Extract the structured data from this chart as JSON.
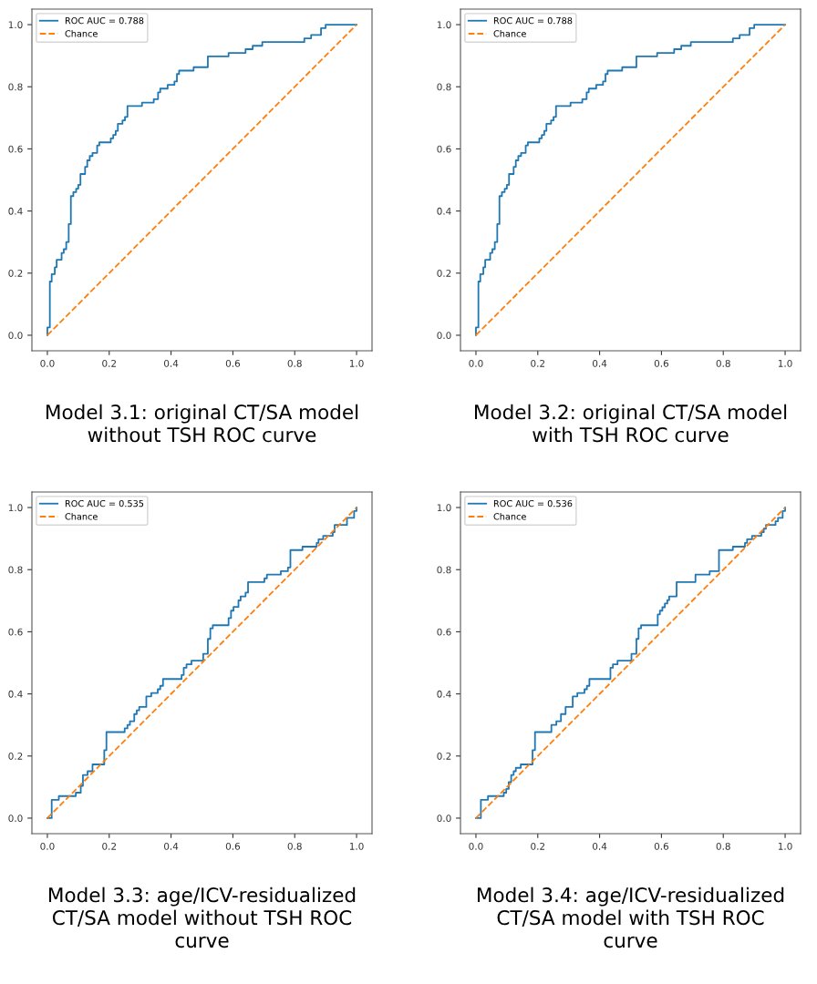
{
  "chart_data": [
    {
      "type": "step",
      "xlabel": "Model 3.1: original CT/SA model\nwithout TSH ROC curve",
      "xlim": [
        -0.05,
        1.05
      ],
      "ylim": [
        -0.05,
        1.05
      ],
      "xticks": [
        {
          "value": 0,
          "label": "0.0"
        },
        {
          "value": 0.2,
          "label": "0.2"
        },
        {
          "value": 0.4,
          "label": "0.4"
        },
        {
          "value": 0.6,
          "label": "0.6"
        },
        {
          "value": 0.8,
          "label": "0.8"
        },
        {
          "value": 1,
          "label": "1.0"
        }
      ],
      "yticks": [
        {
          "value": 0,
          "label": "0.0"
        },
        {
          "value": 0.2,
          "label": "0.2"
        },
        {
          "value": 0.4,
          "label": "0.4"
        },
        {
          "value": 0.6,
          "label": "0.6"
        },
        {
          "value": 0.8,
          "label": "0.8"
        },
        {
          "value": 1,
          "label": "1.0"
        }
      ],
      "grid": false,
      "legend": "top left",
      "series": [
        {
          "name": "ROC AUC = 0.788",
          "color": "#1f77b4",
          "line_style": "solid",
          "x": [
            0,
            0,
            0.008,
            0.014,
            0.024,
            0.03,
            0.046,
            0.053,
            0.061,
            0.069,
            0.076,
            0.084,
            0.093,
            0.1,
            0.107,
            0.122,
            0.129,
            0.137,
            0.146,
            0.161,
            0.168,
            0.205,
            0.213,
            0.221,
            0.228,
            0.243,
            0.251,
            0.259,
            0.306,
            0.344,
            0.358,
            0.365,
            0.389,
            0.411,
            0.419,
            0.426,
            0.473,
            0.519,
            0.586,
            0.641,
            0.664,
            0.695,
            0.831,
            0.853,
            0.885,
            0.9,
            1.0
          ],
          "values": [
            0,
            0.025,
            0.173,
            0.197,
            0.219,
            0.243,
            0.265,
            0.277,
            0.3,
            0.358,
            0.448,
            0.461,
            0.472,
            0.484,
            0.519,
            0.542,
            0.563,
            0.577,
            0.587,
            0.611,
            0.621,
            0.634,
            0.645,
            0.658,
            0.681,
            0.692,
            0.703,
            0.738,
            0.749,
            0.76,
            0.782,
            0.794,
            0.806,
            0.817,
            0.841,
            0.852,
            0.863,
            0.898,
            0.909,
            0.921,
            0.932,
            0.944,
            0.956,
            0.967,
            0.989,
            1.0,
            1.0
          ]
        },
        {
          "name": "Chance",
          "type": "line",
          "color": "#ff7f0e",
          "line_style": "dashed",
          "x": [
            0,
            1
          ],
          "values": [
            0,
            1
          ]
        }
      ]
    },
    {
      "type": "step",
      "xlabel": "Model 3.2: original CT/SA model\nwith TSH ROC curve",
      "xlim": [
        -0.05,
        1.05
      ],
      "ylim": [
        -0.05,
        1.05
      ],
      "xticks": [
        {
          "value": 0,
          "label": "0.0"
        },
        {
          "value": 0.2,
          "label": "0.2"
        },
        {
          "value": 0.4,
          "label": "0.4"
        },
        {
          "value": 0.6,
          "label": "0.6"
        },
        {
          "value": 0.8,
          "label": "0.8"
        },
        {
          "value": 1,
          "label": "1.0"
        }
      ],
      "yticks": [
        {
          "value": 0,
          "label": "0.0"
        },
        {
          "value": 0.2,
          "label": "0.2"
        },
        {
          "value": 0.4,
          "label": "0.4"
        },
        {
          "value": 0.6,
          "label": "0.6"
        },
        {
          "value": 0.8,
          "label": "0.8"
        },
        {
          "value": 1,
          "label": "1.0"
        }
      ],
      "grid": false,
      "legend": "top left",
      "series": [
        {
          "name": "ROC AUC = 0.788",
          "color": "#1f77b4",
          "line_style": "solid",
          "x": [
            0,
            0,
            0.008,
            0.014,
            0.024,
            0.03,
            0.046,
            0.053,
            0.061,
            0.069,
            0.076,
            0.084,
            0.093,
            0.1,
            0.107,
            0.122,
            0.129,
            0.137,
            0.146,
            0.161,
            0.168,
            0.205,
            0.213,
            0.221,
            0.228,
            0.243,
            0.251,
            0.259,
            0.306,
            0.344,
            0.358,
            0.365,
            0.389,
            0.411,
            0.419,
            0.426,
            0.473,
            0.519,
            0.586,
            0.641,
            0.664,
            0.695,
            0.831,
            0.853,
            0.885,
            0.9,
            1.0
          ],
          "values": [
            0,
            0.025,
            0.173,
            0.197,
            0.219,
            0.243,
            0.265,
            0.277,
            0.3,
            0.358,
            0.448,
            0.461,
            0.472,
            0.484,
            0.519,
            0.542,
            0.563,
            0.577,
            0.587,
            0.611,
            0.621,
            0.634,
            0.645,
            0.658,
            0.681,
            0.692,
            0.703,
            0.738,
            0.749,
            0.76,
            0.782,
            0.794,
            0.806,
            0.817,
            0.841,
            0.852,
            0.863,
            0.898,
            0.909,
            0.921,
            0.932,
            0.944,
            0.956,
            0.967,
            0.989,
            1.0,
            1.0
          ]
        },
        {
          "name": "Chance",
          "type": "line",
          "color": "#ff7f0e",
          "line_style": "dashed",
          "x": [
            0,
            1
          ],
          "values": [
            0,
            1
          ]
        }
      ]
    },
    {
      "type": "step",
      "xlabel": "Model 3.3: age/ICV-residualized\nCT/SA model without TSH ROC\ncurve",
      "xlim": [
        -0.05,
        1.05
      ],
      "ylim": [
        -0.05,
        1.05
      ],
      "xticks": [
        {
          "value": 0,
          "label": "0.0"
        },
        {
          "value": 0.2,
          "label": "0.2"
        },
        {
          "value": 0.4,
          "label": "0.4"
        },
        {
          "value": 0.6,
          "label": "0.6"
        },
        {
          "value": 0.8,
          "label": "0.8"
        },
        {
          "value": 1,
          "label": "1.0"
        }
      ],
      "yticks": [
        {
          "value": 0,
          "label": "0.0"
        },
        {
          "value": 0.2,
          "label": "0.2"
        },
        {
          "value": 0.4,
          "label": "0.4"
        },
        {
          "value": 0.6,
          "label": "0.6"
        },
        {
          "value": 0.8,
          "label": "0.8"
        },
        {
          "value": 1,
          "label": "1.0"
        }
      ],
      "grid": false,
      "legend": "top left",
      "series": [
        {
          "name": "ROC AUC = 0.535",
          "color": "#1f77b4",
          "line_style": "solid",
          "x": [
            0,
            0.014,
            0.037,
            0.092,
            0.108,
            0.115,
            0.13,
            0.146,
            0.184,
            0.191,
            0.25,
            0.259,
            0.267,
            0.281,
            0.289,
            0.297,
            0.32,
            0.336,
            0.357,
            0.365,
            0.374,
            0.434,
            0.441,
            0.45,
            0.466,
            0.504,
            0.519,
            0.527,
            0.535,
            0.586,
            0.594,
            0.602,
            0.618,
            0.625,
            0.641,
            0.649,
            0.702,
            0.71,
            0.755,
            0.778,
            0.786,
            0.825,
            0.871,
            0.877,
            0.892,
            0.923,
            0.929,
            0.969,
            0.992,
            1.0
          ],
          "values": [
            0,
            0.059,
            0.071,
            0.082,
            0.104,
            0.139,
            0.151,
            0.173,
            0.219,
            0.277,
            0.289,
            0.3,
            0.312,
            0.335,
            0.347,
            0.358,
            0.392,
            0.403,
            0.415,
            0.426,
            0.448,
            0.461,
            0.484,
            0.495,
            0.507,
            0.529,
            0.577,
            0.611,
            0.621,
            0.644,
            0.668,
            0.68,
            0.701,
            0.714,
            0.726,
            0.76,
            0.772,
            0.784,
            0.795,
            0.807,
            0.863,
            0.874,
            0.886,
            0.898,
            0.909,
            0.921,
            0.944,
            0.967,
            0.989,
            1.0
          ]
        },
        {
          "name": "Chance",
          "type": "line",
          "color": "#ff7f0e",
          "line_style": "dashed",
          "x": [
            0,
            1
          ],
          "values": [
            0,
            1
          ]
        }
      ]
    },
    {
      "type": "step",
      "xlabel": "Model 3.4: age/ICV-residualized\nCT/SA model with TSH ROC\ncurve",
      "xlim": [
        -0.05,
        1.05
      ],
      "ylim": [
        -0.05,
        1.05
      ],
      "xticks": [
        {
          "value": 0,
          "label": "0.0"
        },
        {
          "value": 0.2,
          "label": "0.2"
        },
        {
          "value": 0.4,
          "label": "0.4"
        },
        {
          "value": 0.6,
          "label": "0.6"
        },
        {
          "value": 0.8,
          "label": "0.8"
        },
        {
          "value": 1,
          "label": "1.0"
        }
      ],
      "yticks": [
        {
          "value": 0,
          "label": "0.0"
        },
        {
          "value": 0.2,
          "label": "0.2"
        },
        {
          "value": 0.4,
          "label": "0.4"
        },
        {
          "value": 0.6,
          "label": "0.6"
        },
        {
          "value": 0.8,
          "label": "0.8"
        },
        {
          "value": 1,
          "label": "1.0"
        }
      ],
      "grid": false,
      "legend": "top left",
      "series": [
        {
          "name": "ROC AUC = 0.536",
          "color": "#1f77b4",
          "line_style": "solid",
          "x": [
            0,
            0.016,
            0.039,
            0.09,
            0.098,
            0.106,
            0.114,
            0.122,
            0.129,
            0.145,
            0.183,
            0.191,
            0.244,
            0.26,
            0.275,
            0.29,
            0.313,
            0.328,
            0.351,
            0.359,
            0.367,
            0.435,
            0.443,
            0.458,
            0.503,
            0.519,
            0.526,
            0.534,
            0.588,
            0.595,
            0.603,
            0.611,
            0.619,
            0.625,
            0.649,
            0.71,
            0.756,
            0.786,
            0.831,
            0.87,
            0.877,
            0.893,
            0.923,
            0.931,
            0.938,
            0.969,
            0.977,
            0.992,
            1.0
          ],
          "values": [
            0,
            0.059,
            0.071,
            0.082,
            0.094,
            0.116,
            0.139,
            0.151,
            0.162,
            0.173,
            0.219,
            0.277,
            0.3,
            0.312,
            0.335,
            0.358,
            0.392,
            0.403,
            0.415,
            0.426,
            0.448,
            0.484,
            0.495,
            0.507,
            0.529,
            0.577,
            0.611,
            0.621,
            0.656,
            0.668,
            0.679,
            0.691,
            0.702,
            0.714,
            0.76,
            0.784,
            0.795,
            0.863,
            0.874,
            0.886,
            0.898,
            0.909,
            0.921,
            0.932,
            0.944,
            0.956,
            0.967,
            0.989,
            1.0
          ]
        },
        {
          "name": "Chance",
          "type": "line",
          "color": "#ff7f0e",
          "line_style": "dashed",
          "x": [
            0,
            1
          ],
          "values": [
            0,
            1
          ]
        }
      ]
    }
  ]
}
